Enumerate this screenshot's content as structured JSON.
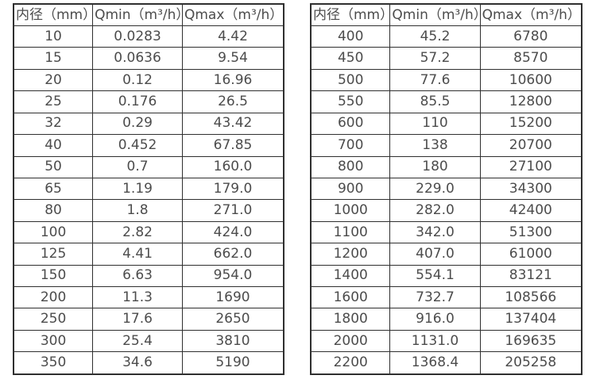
{
  "colors": {
    "background": "#ffffff",
    "border": "#2f2f2f",
    "text": "#4c4c4c"
  },
  "tables": [
    {
      "id": "small-diameters",
      "headers": [
        "内径（mm）",
        "Qmin（m³/h）",
        "Qmax（m³/h）"
      ],
      "rows": [
        [
          "10",
          "0.0283",
          "4.42"
        ],
        [
          "15",
          "0.0636",
          "9.54"
        ],
        [
          "20",
          "0.12",
          "16.96"
        ],
        [
          "25",
          "0.176",
          "26.5"
        ],
        [
          "32",
          "0.29",
          "43.42"
        ],
        [
          "40",
          "0.452",
          "67.85"
        ],
        [
          "50",
          "0.7",
          "160.0"
        ],
        [
          "65",
          "1.19",
          "179.0"
        ],
        [
          "80",
          "1.8",
          "271.0"
        ],
        [
          "100",
          "2.82",
          "424.0"
        ],
        [
          "125",
          "4.41",
          "662.0"
        ],
        [
          "150",
          "6.63",
          "954.0"
        ],
        [
          "200",
          "11.3",
          "1690"
        ],
        [
          "250",
          "17.6",
          "2650"
        ],
        [
          "300",
          "25.4",
          "3810"
        ],
        [
          "350",
          "34.6",
          "5190"
        ]
      ]
    },
    {
      "id": "large-diameters",
      "headers": [
        "内径（mm）",
        "Qmin（m³/h）",
        "Qmax（m³/h）"
      ],
      "rows": [
        [
          "400",
          "45.2",
          "6780"
        ],
        [
          "450",
          "57.2",
          "8570"
        ],
        [
          "500",
          "77.6",
          "10600"
        ],
        [
          "550",
          "85.5",
          "12800"
        ],
        [
          "600",
          "110",
          "15200"
        ],
        [
          "700",
          "138",
          "20700"
        ],
        [
          "800",
          "180",
          "27100"
        ],
        [
          "900",
          "229.0",
          "34300"
        ],
        [
          "1000",
          "282.0",
          "42400"
        ],
        [
          "1100",
          "342.0",
          "51300"
        ],
        [
          "1200",
          "407.0",
          "61000"
        ],
        [
          "1400",
          "554.1",
          "83121"
        ],
        [
          "1600",
          "732.7",
          "108566"
        ],
        [
          "1800",
          "916.0",
          "137404"
        ],
        [
          "2000",
          "1131.0",
          "169635"
        ],
        [
          "2200",
          "1368.4",
          "205258"
        ]
      ]
    }
  ]
}
